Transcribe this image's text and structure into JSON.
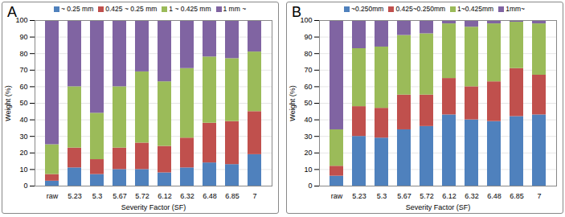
{
  "chart_data": [
    {
      "type": "bar",
      "title": "A",
      "stacked": true,
      "grid": true,
      "x_label": "Severity Factor (SF)",
      "y_label": "Weight (%)",
      "categories": [
        "raw",
        "5.23",
        "5.3",
        "5.67",
        "5.72",
        "6.12",
        "6.32",
        "6.48",
        "6.85",
        "7"
      ],
      "ylim": [
        0,
        100
      ],
      "yticks": [
        0,
        10,
        20,
        30,
        40,
        50,
        60,
        70,
        80,
        90,
        100
      ],
      "series": [
        {
          "name": "~ 0.25 mm",
          "color": "#4f81bd",
          "values": [
            3,
            11,
            7,
            10,
            10,
            8,
            11,
            14,
            13,
            19
          ]
        },
        {
          "name": "0.425 ~ 0.25 mm",
          "color": "#c0504d",
          "values": [
            4,
            12,
            9,
            13,
            16,
            16,
            18,
            24,
            26,
            26
          ]
        },
        {
          "name": "1 ~ 0.425 mm",
          "color": "#9bbb59",
          "values": [
            18,
            37,
            28,
            37,
            43,
            39,
            42,
            40,
            38,
            36
          ]
        },
        {
          "name": "1 mm ~",
          "color": "#8064a2",
          "values": [
            75,
            40,
            56,
            40,
            31,
            37,
            29,
            22,
            23,
            19
          ]
        }
      ]
    },
    {
      "type": "bar",
      "title": "B",
      "stacked": true,
      "grid": true,
      "x_label": "Severity Factor (SF)",
      "y_label": "Weight (%)",
      "categories": [
        "raw",
        "5.23",
        "5.3",
        "5.67",
        "5.72",
        "6.12",
        "6.32",
        "6.48",
        "6.85",
        "7"
      ],
      "ylim": [
        0,
        100
      ],
      "yticks": [
        0,
        10,
        20,
        30,
        40,
        50,
        60,
        70,
        80,
        90,
        100
      ],
      "series": [
        {
          "name": "~0.250mm",
          "color": "#4f81bd",
          "values": [
            6,
            30,
            29,
            34,
            36,
            43,
            40,
            39,
            42,
            43
          ]
        },
        {
          "name": "0.425~0.250mm",
          "color": "#c0504d",
          "values": [
            6,
            18,
            18,
            21,
            19,
            22,
            20,
            24,
            29,
            24
          ]
        },
        {
          "name": "1~0.425mm",
          "color": "#9bbb59",
          "values": [
            22,
            35,
            37,
            36,
            37,
            33,
            36,
            35,
            28,
            31
          ]
        },
        {
          "name": "1mm~",
          "color": "#8064a2",
          "values": [
            66,
            17,
            16,
            9,
            8,
            2,
            4,
            2,
            1,
            2
          ]
        }
      ]
    }
  ]
}
